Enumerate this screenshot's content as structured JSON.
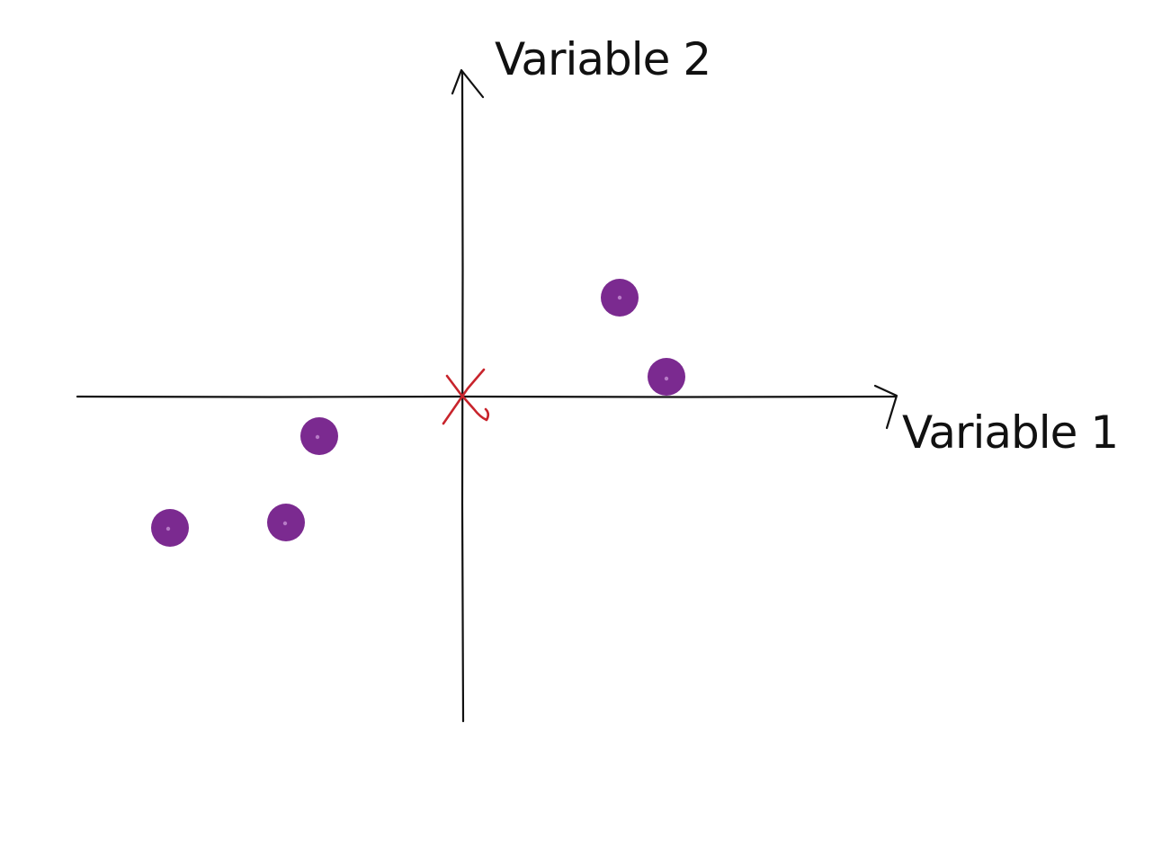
{
  "diagram": {
    "x_axis_label": "Variable 1",
    "y_axis_label": "Variable 2",
    "colors": {
      "axes": "#111111",
      "points": "#7b2a90",
      "origin_marker": "#c8242c",
      "background": "#ffffff"
    },
    "origin_marker_icon": "x-mark",
    "point_count": 5
  }
}
